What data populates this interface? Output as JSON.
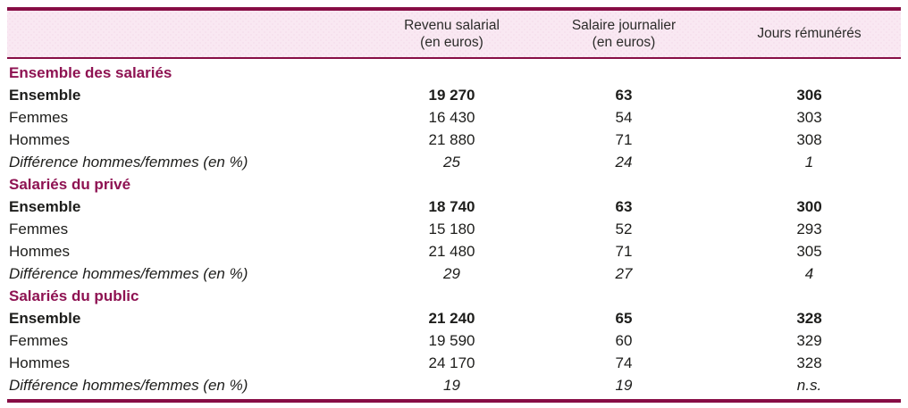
{
  "colors": {
    "accent_border": "#870d45",
    "section_title_text": "#8e1252",
    "header_background": "#f9e8f2",
    "body_text": "#1d1d1b"
  },
  "table": {
    "header": {
      "columns": [
        {
          "line1": "Revenu salarial",
          "line2": "(en euros)"
        },
        {
          "line1": "Salaire journalier",
          "line2": "(en euros)"
        },
        {
          "line1": "Jours rémunérés",
          "line2": ""
        }
      ]
    },
    "sections": [
      {
        "title": "Ensemble des salariés",
        "rows": [
          {
            "label": "Ensemble",
            "style": "bold",
            "values": [
              "19 270",
              "63",
              "306"
            ]
          },
          {
            "label": "Femmes",
            "style": "normal",
            "values": [
              "16 430",
              "54",
              "303"
            ]
          },
          {
            "label": "Hommes",
            "style": "normal",
            "values": [
              "21 880",
              "71",
              "308"
            ]
          },
          {
            "label": "Différence hommes/femmes (en %)",
            "style": "italic",
            "values": [
              "25",
              "24",
              "1"
            ]
          }
        ]
      },
      {
        "title": "Salariés du privé",
        "rows": [
          {
            "label": "Ensemble",
            "style": "bold",
            "values": [
              "18 740",
              "63",
              "300"
            ]
          },
          {
            "label": "Femmes",
            "style": "normal",
            "values": [
              "15 180",
              "52",
              "293"
            ]
          },
          {
            "label": "Hommes",
            "style": "normal",
            "values": [
              "21 480",
              "71",
              "305"
            ]
          },
          {
            "label": "Différence hommes/femmes (en %)",
            "style": "italic",
            "values": [
              "29",
              "27",
              "4"
            ]
          }
        ]
      },
      {
        "title": "Salariés du public",
        "rows": [
          {
            "label": "Ensemble",
            "style": "bold",
            "values": [
              "21 240",
              "65",
              "328"
            ]
          },
          {
            "label": "Femmes",
            "style": "normal",
            "values": [
              "19 590",
              "60",
              "329"
            ]
          },
          {
            "label": "Hommes",
            "style": "normal",
            "values": [
              "24 170",
              "74",
              "328"
            ]
          },
          {
            "label": "Différence hommes/femmes (en %)",
            "style": "italic",
            "values": [
              "19",
              "19",
              "n.s."
            ]
          }
        ]
      }
    ]
  }
}
